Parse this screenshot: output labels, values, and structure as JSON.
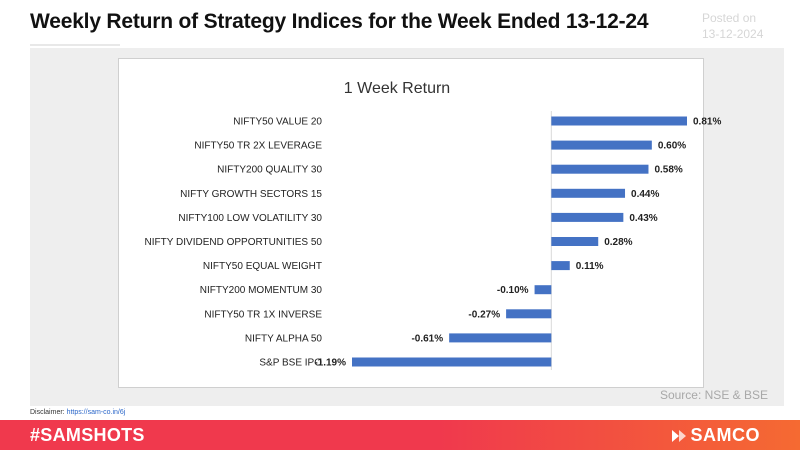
{
  "header": {
    "title": "Weekly Return of Strategy Indices for the Week Ended 13-12-24",
    "posted_label": "Posted on",
    "posted_date": "13-12-2024"
  },
  "source": "Source: NSE & BSE",
  "disclaimer": {
    "label": "Disclaimer: ",
    "link": "https://sam-co.in/6j"
  },
  "footer": {
    "hashtag": "#SAMSHOTS",
    "brand": "SAMCO",
    "brand_icon": "samco-logo-icon"
  },
  "colors": {
    "bar": "#4472c4",
    "footer_start": "#f0394d",
    "footer_end": "#f56a32"
  },
  "chart_data": {
    "type": "bar",
    "orientation": "horizontal",
    "title": "1 Week Return",
    "categories": [
      "NIFTY50 VALUE 20",
      "NIFTY50 TR 2X LEVERAGE",
      "NIFTY200 QUALITY 30",
      "NIFTY GROWTH SECTORS 15",
      "NIFTY100 LOW VOLATILITY 30",
      "NIFTY DIVIDEND OPPORTUNITIES 50",
      "NIFTY50 EQUAL WEIGHT",
      "NIFTY200 MOMENTUM 30",
      "NIFTY50 TR 1X INVERSE",
      "NIFTY ALPHA 50",
      "S&P BSE IPO"
    ],
    "values": [
      0.81,
      0.6,
      0.58,
      0.44,
      0.43,
      0.28,
      0.11,
      -0.1,
      -0.27,
      -0.61,
      -1.19
    ],
    "value_labels": [
      "0.81%",
      "0.60%",
      "0.58%",
      "0.44%",
      "0.43%",
      "0.28%",
      "0.11%",
      "-0.10%",
      "-0.27%",
      "-0.61%",
      "-1.19%"
    ],
    "xlim": [
      -1.19,
      0.81
    ],
    "grid": false,
    "legend": "none"
  }
}
